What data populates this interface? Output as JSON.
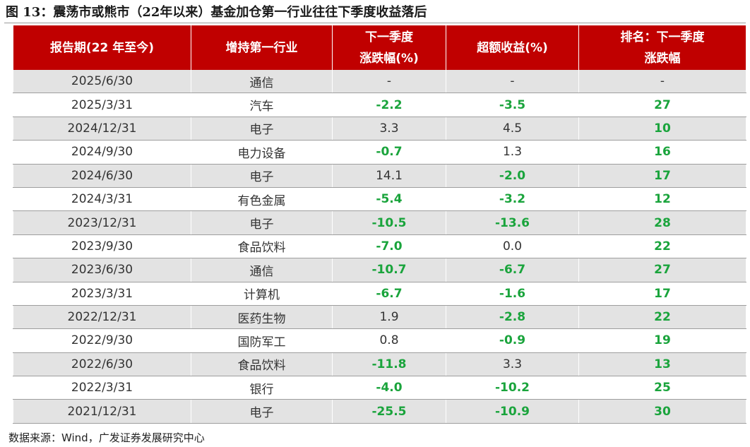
{
  "title": "图 13：震荡市或熊市（22年以来）基金加仓第一行业往往下季度收益落后",
  "table": {
    "headers": [
      [
        "报告期(22 年至今)"
      ],
      [
        "增持第一行业"
      ],
      [
        "下一季度",
        "涨跌幅(%)"
      ],
      [
        "超额收益(%)"
      ],
      [
        "排名：下一季度",
        "涨跌幅"
      ]
    ],
    "rows": [
      {
        "date": "2025/6/30",
        "industry": "通信",
        "chg": "-",
        "excess": "-",
        "rank": "-"
      },
      {
        "date": "2025/3/31",
        "industry": "汽车",
        "chg": "-2.2",
        "excess": "-3.5",
        "rank": "27"
      },
      {
        "date": "2024/12/31",
        "industry": "电子",
        "chg": "3.3",
        "excess": "4.5",
        "rank": "10"
      },
      {
        "date": "2024/9/30",
        "industry": "电力设备",
        "chg": "-0.7",
        "excess": "1.3",
        "rank": "16"
      },
      {
        "date": "2024/6/30",
        "industry": "电子",
        "chg": "14.1",
        "excess": "-2.0",
        "rank": "17"
      },
      {
        "date": "2024/3/31",
        "industry": "有色金属",
        "chg": "-5.4",
        "excess": "-3.2",
        "rank": "12"
      },
      {
        "date": "2023/12/31",
        "industry": "电子",
        "chg": "-10.5",
        "excess": "-13.6",
        "rank": "28"
      },
      {
        "date": "2023/9/30",
        "industry": "食品饮料",
        "chg": "-7.0",
        "excess": "0.0",
        "rank": "22"
      },
      {
        "date": "2023/6/30",
        "industry": "通信",
        "chg": "-10.7",
        "excess": "-6.7",
        "rank": "27"
      },
      {
        "date": "2023/3/31",
        "industry": "计算机",
        "chg": "-6.7",
        "excess": "-1.6",
        "rank": "17"
      },
      {
        "date": "2022/12/31",
        "industry": "医药生物",
        "chg": "1.9",
        "excess": "-2.8",
        "rank": "22"
      },
      {
        "date": "2022/9/30",
        "industry": "国防军工",
        "chg": "0.8",
        "excess": "-0.9",
        "rank": "19"
      },
      {
        "date": "2022/6/30",
        "industry": "食品饮料",
        "chg": "-11.8",
        "excess": "3.3",
        "rank": "13"
      },
      {
        "date": "2022/3/31",
        "industry": "银行",
        "chg": "-4.0",
        "excess": "-10.2",
        "rank": "25"
      },
      {
        "date": "2021/12/31",
        "industry": "电子",
        "chg": "-25.5",
        "excess": "-10.9",
        "rank": "30"
      }
    ]
  },
  "source": "数据来源：Wind，广发证券发展研究中心",
  "colors": {
    "header_bg": "#c00000",
    "negative_green": "#1aa43c",
    "stripe_gray": "#e3e3e3"
  }
}
